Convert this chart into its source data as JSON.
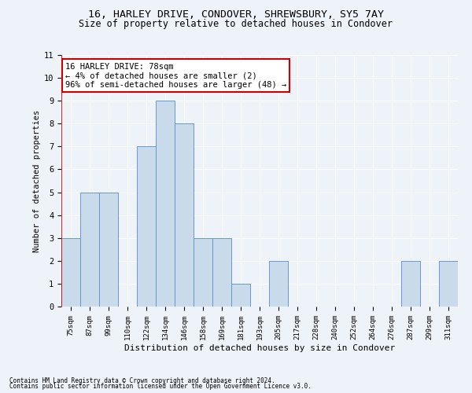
{
  "title1": "16, HARLEY DRIVE, CONDOVER, SHREWSBURY, SY5 7AY",
  "title2": "Size of property relative to detached houses in Condover",
  "xlabel": "Distribution of detached houses by size in Condover",
  "ylabel": "Number of detached properties",
  "categories": [
    "75sqm",
    "87sqm",
    "99sqm",
    "110sqm",
    "122sqm",
    "134sqm",
    "146sqm",
    "158sqm",
    "169sqm",
    "181sqm",
    "193sqm",
    "205sqm",
    "217sqm",
    "228sqm",
    "240sqm",
    "252sqm",
    "264sqm",
    "276sqm",
    "287sqm",
    "299sqm",
    "311sqm"
  ],
  "values": [
    3,
    5,
    5,
    0,
    7,
    9,
    8,
    3,
    3,
    1,
    0,
    2,
    0,
    0,
    0,
    0,
    0,
    0,
    2,
    0,
    2
  ],
  "bar_color": "#c9daea",
  "bar_edge_color": "#6699cc",
  "annotation_text": "16 HARLEY DRIVE: 78sqm\n← 4% of detached houses are smaller (2)\n96% of semi-detached houses are larger (48) →",
  "annotation_box_color": "#ffffff",
  "annotation_box_edge": "#cc0000",
  "ylim": [
    0,
    11
  ],
  "yticks": [
    0,
    1,
    2,
    3,
    4,
    5,
    6,
    7,
    8,
    9,
    10,
    11
  ],
  "footer1": "Contains HM Land Registry data © Crown copyright and database right 2024.",
  "footer2": "Contains public sector information licensed under the Open Government Licence v3.0.",
  "background_color": "#eef2f9",
  "plot_bg_color": "#eef2f9",
  "grid_color": "#ffffff",
  "title1_fontsize": 9.5,
  "title2_fontsize": 8.5,
  "axis_label_fontsize": 7.5,
  "tick_fontsize": 6.5,
  "annotation_fontsize": 7.5,
  "red_line_color": "#cc0000",
  "footer_fontsize": 5.5
}
